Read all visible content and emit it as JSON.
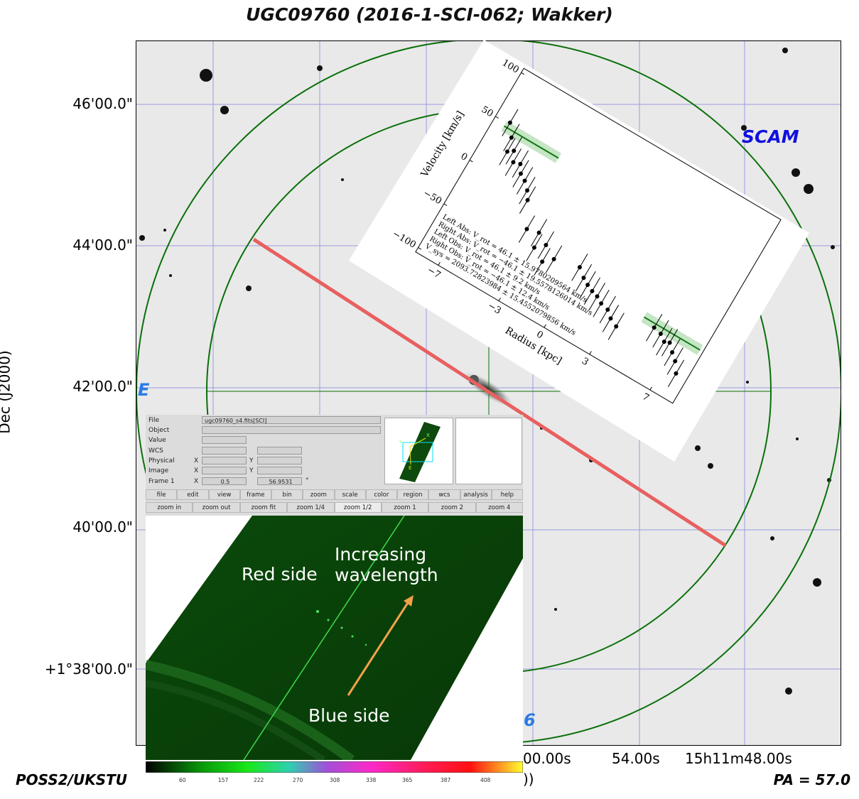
{
  "title": "UGC09760 (2016-1-SCI-062; Wakker)",
  "axes": {
    "ylabel": "Dec (J2000)",
    "yticks": [
      "46'00.0\"",
      "44'00.0\"",
      "42'00.0\"",
      "40'00.0\"",
      "+1°38'00.0\""
    ],
    "xticks": [
      "00.00s",
      "54.00s",
      "15h11m48.00s"
    ],
    "xlabel_tail": "))"
  },
  "footer": {
    "survey": "POSS2/UKSTU",
    "pa": "PA = 57.0"
  },
  "overlay_labels": {
    "scam": "SCAM",
    "east": "E",
    "six": "6"
  },
  "ds9": {
    "fields": {
      "file_label": "File",
      "file_value": "ugc09760_s4.fits[SCI]",
      "object_label": "Object",
      "value_label": "Value",
      "wcs_label": "WCS",
      "physical_label": "Physical",
      "image_label": "Image",
      "frame_label": "Frame 1",
      "x_label": "X",
      "y_label": "Y",
      "frame_x": "0.5",
      "frame_y": "56.9531",
      "deg": "°"
    },
    "menu": [
      "file",
      "edit",
      "view",
      "frame",
      "bin",
      "zoom",
      "scale",
      "color",
      "region",
      "wcs",
      "analysis",
      "help"
    ],
    "zoom_buttons": [
      "zoom in",
      "zoom out",
      "zoom fit",
      "zoom 1/4",
      "zoom 1/2",
      "zoom 1",
      "zoom 2",
      "zoom 4"
    ],
    "panner": {
      "x_label": "X",
      "y_label": "Y",
      "e_label": "E"
    }
  },
  "spectrum": {
    "increasing": "Increasing wavelength",
    "red_side": "Red side",
    "blue_side": "Blue side"
  },
  "colorbar": {
    "ticks": [
      "60",
      "157",
      "222",
      "270",
      "308",
      "338",
      "365",
      "387",
      "408"
    ]
  },
  "chart_data": {
    "type": "scatter",
    "xlabel": "Radius [kpc]",
    "ylabel": "Velocity [km/s]",
    "xticks": [
      "−7",
      "−3",
      "0",
      "3",
      "7"
    ],
    "yticks": [
      "100",
      "50",
      "0",
      "−50",
      "−100"
    ],
    "xlim": [
      -8.5,
      8.5
    ],
    "ylim": [
      -105,
      105
    ],
    "annotations": [
      "Left Abs: V_rot = 46.1 ± 15.9780209564 km/s",
      "Right Abs: V_rot = −46.1 ± 19.5578126014 km/s",
      "Left Obs: V_rot = 46.1 ± 9.2 km/s",
      "Right Obs: V_rot = −46.1 ± 12.4 km/s",
      "V_sys = 2093.72823984 ± 15.4552079856 km/s"
    ],
    "points": [
      {
        "x": -7.6,
        "y": 52
      },
      {
        "x": -7.1,
        "y": 40
      },
      {
        "x": -6.6,
        "y": 30
      },
      {
        "x": -6.9,
        "y": 26
      },
      {
        "x": -6.3,
        "y": 20
      },
      {
        "x": -5.9,
        "y": 22
      },
      {
        "x": -5.6,
        "y": 14
      },
      {
        "x": -5.2,
        "y": 10
      },
      {
        "x": -4.8,
        "y": 3
      },
      {
        "x": -4.5,
        "y": -5
      },
      {
        "x": -3.7,
        "y": -30
      },
      {
        "x": -3.0,
        "y": -27
      },
      {
        "x": -2.8,
        "y": -42
      },
      {
        "x": -2.3,
        "y": -34
      },
      {
        "x": -2.0,
        "y": -50
      },
      {
        "x": -1.5,
        "y": -42
      },
      {
        "x": 0.0,
        "y": -36
      },
      {
        "x": 0.5,
        "y": -43
      },
      {
        "x": 0.9,
        "y": -47
      },
      {
        "x": 1.3,
        "y": -50
      },
      {
        "x": 1.7,
        "y": -52
      },
      {
        "x": 2.1,
        "y": -56
      },
      {
        "x": 2.6,
        "y": -58
      },
      {
        "x": 3.0,
        "y": -64
      },
      {
        "x": 3.5,
        "y": -68
      },
      {
        "x": 5.4,
        "y": -50
      },
      {
        "x": 5.9,
        "y": -52
      },
      {
        "x": 6.3,
        "y": -57
      },
      {
        "x": 6.6,
        "y": -55
      },
      {
        "x": 7.0,
        "y": -62
      },
      {
        "x": 7.4,
        "y": -68
      },
      {
        "x": 7.8,
        "y": -78
      }
    ],
    "fits": [
      {
        "x": [
          -7.8,
          -4.2
        ],
        "y": [
          46.1,
          46.1
        ]
      },
      {
        "x": [
          4.6,
          8.3
        ],
        "y": [
          -46.1,
          -46.1
        ]
      }
    ]
  }
}
